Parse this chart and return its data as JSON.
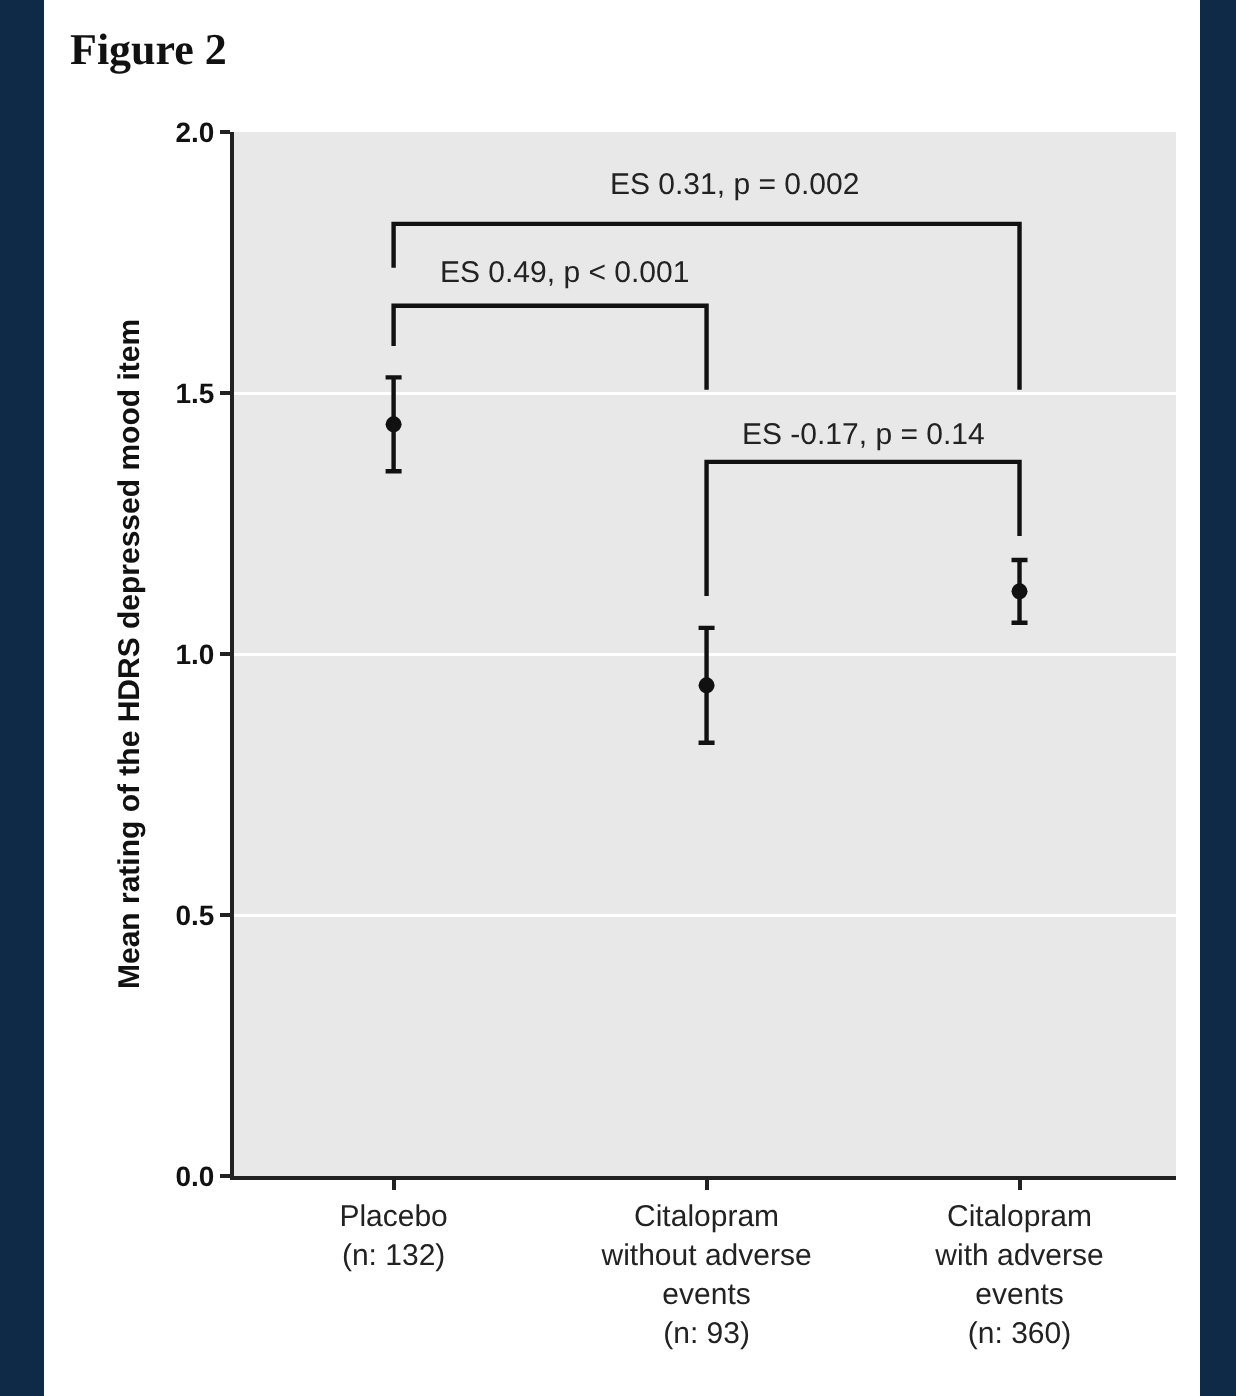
{
  "chart_data": {
    "type": "scatter",
    "title": "Figure 2",
    "ylabel": "Mean rating of the HDRS depressed mood item",
    "categories": [
      "Placebo\n(n: 132)",
      "Citalopram\nwithout adverse\nevents\n(n: 93)",
      "Citalopram\nwith adverse\nevents\n(n: 360)"
    ],
    "values": [
      1.44,
      0.94,
      1.12
    ],
    "errors": [
      [
        1.35,
        1.53
      ],
      [
        0.83,
        1.05
      ],
      [
        1.06,
        1.18
      ]
    ],
    "color": "#111111",
    "marker": "circle",
    "ylim": [
      0,
      2
    ],
    "yticks": [
      {
        "value": 0,
        "label": "0.0"
      },
      {
        "value": 0.5,
        "label": "0.5"
      },
      {
        "value": 1,
        "label": "1.0"
      },
      {
        "value": 1.5,
        "label": "1.5"
      },
      {
        "value": 2,
        "label": "2.0"
      }
    ],
    "grid": "y",
    "annotations": [
      "ES 0.31, p = 0.002",
      "ES 0.49, p < 0.001",
      "ES -0.17, p = 0.14"
    ]
  }
}
